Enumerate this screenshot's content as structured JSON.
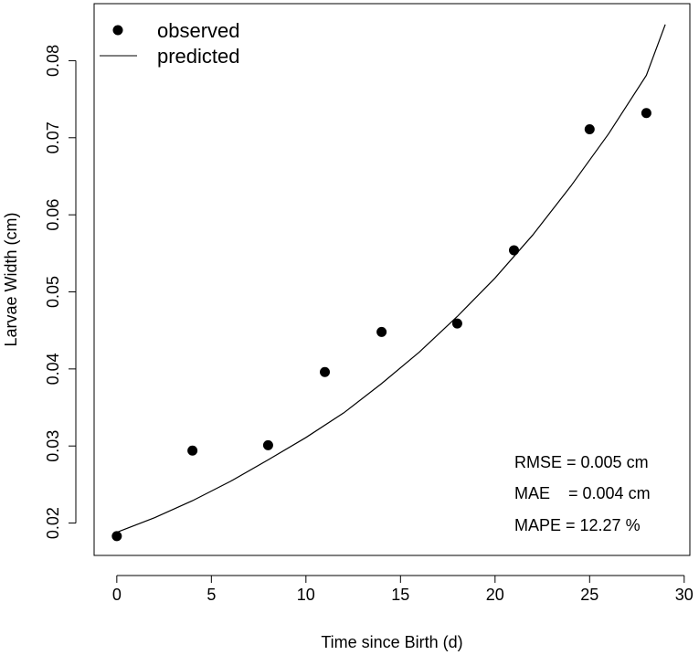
{
  "chart_data": {
    "type": "scatter",
    "xlabel": "Time since Birth (d)",
    "ylabel": "Larvae Width (cm)",
    "xlim": [
      -1.2,
      30.3
    ],
    "ylim": [
      0.0158,
      0.0874
    ],
    "x_ticks": [
      0,
      5,
      10,
      15,
      20,
      25,
      30
    ],
    "y_ticks": [
      0.02,
      0.03,
      0.04,
      0.05,
      0.06,
      0.07,
      0.08
    ],
    "x_tick_labels": [
      "0",
      "5",
      "10",
      "15",
      "20",
      "25",
      "30"
    ],
    "y_tick_labels": [
      "0.02",
      "0.03",
      "0.04",
      "0.05",
      "0.06",
      "0.07",
      "0.08"
    ],
    "legend_position": "top-left",
    "grid": false,
    "series": [
      {
        "name": "observed",
        "kind": "points",
        "x": [
          0,
          4,
          8,
          11,
          14,
          18,
          21,
          25,
          28
        ],
        "y": [
          0.0183,
          0.0294,
          0.0301,
          0.0396,
          0.0448,
          0.0459,
          0.0554,
          0.0711,
          0.0732
        ]
      },
      {
        "name": "predicted",
        "kind": "line",
        "x": [
          0,
          2,
          4,
          6,
          8,
          10,
          12,
          14,
          16,
          18,
          20,
          22,
          24,
          26,
          28,
          29
        ],
        "y": [
          0.0188,
          0.0207,
          0.0229,
          0.0254,
          0.0282,
          0.0311,
          0.0343,
          0.0381,
          0.0422,
          0.0468,
          0.0518,
          0.0574,
          0.0637,
          0.0705,
          0.0781,
          0.0847
        ]
      }
    ],
    "annotations": [
      "RMSE = 0.005 cm",
      "MAE    = 0.004 cm",
      "MAPE = 12.27 %"
    ]
  }
}
